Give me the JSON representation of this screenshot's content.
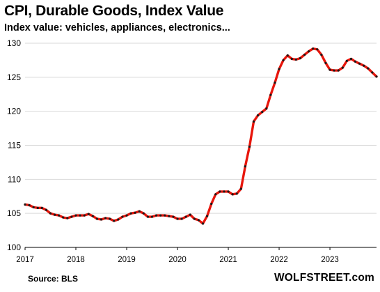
{
  "header": {
    "title": "CPI, Durable Goods,  Index Value",
    "subtitle": "Index value: vehicles, appliances, electronics..."
  },
  "footer": {
    "source": "Source: BLS",
    "brand": "WOLFSTREET.com"
  },
  "colors": {
    "line": "#e8160c",
    "markers": "#1a1a1a",
    "grid": "#d9d9d9"
  },
  "chart_data": {
    "type": "line",
    "title": "CPI, Durable Goods,  Index Value",
    "subtitle": "Index value: vehicles, appliances, electronics...",
    "xlabel": "",
    "ylabel": "",
    "ylim": [
      100,
      130
    ],
    "yticks": [
      100,
      105,
      110,
      115,
      120,
      125,
      130
    ],
    "xlim": [
      2017.0,
      2023.917
    ],
    "xticks": [
      "2017",
      "2018",
      "2019",
      "2020",
      "2021",
      "2022",
      "2023"
    ],
    "grid": true,
    "legend": "none",
    "series": [
      {
        "values": [
          [
            2017.0,
            106.3
          ],
          [
            2017.083,
            106.2
          ],
          [
            2017.167,
            105.9
          ],
          [
            2017.25,
            105.8
          ],
          [
            2017.333,
            105.8
          ],
          [
            2017.417,
            105.5
          ],
          [
            2017.5,
            105.0
          ],
          [
            2017.583,
            104.8
          ],
          [
            2017.667,
            104.7
          ],
          [
            2017.75,
            104.4
          ],
          [
            2017.833,
            104.3
          ],
          [
            2017.917,
            104.5
          ],
          [
            2018.0,
            104.7
          ],
          [
            2018.083,
            104.7
          ],
          [
            2018.167,
            104.7
          ],
          [
            2018.25,
            104.9
          ],
          [
            2018.333,
            104.6
          ],
          [
            2018.417,
            104.2
          ],
          [
            2018.5,
            104.1
          ],
          [
            2018.583,
            104.3
          ],
          [
            2018.667,
            104.2
          ],
          [
            2018.75,
            103.9
          ],
          [
            2018.833,
            104.1
          ],
          [
            2018.917,
            104.5
          ],
          [
            2019.0,
            104.7
          ],
          [
            2019.083,
            105.0
          ],
          [
            2019.167,
            105.1
          ],
          [
            2019.25,
            105.3
          ],
          [
            2019.333,
            105.0
          ],
          [
            2019.417,
            104.5
          ],
          [
            2019.5,
            104.5
          ],
          [
            2019.583,
            104.7
          ],
          [
            2019.667,
            104.7
          ],
          [
            2019.75,
            104.7
          ],
          [
            2019.833,
            104.6
          ],
          [
            2019.917,
            104.5
          ],
          [
            2020.0,
            104.2
          ],
          [
            2020.083,
            104.2
          ],
          [
            2020.167,
            104.5
          ],
          [
            2020.25,
            104.8
          ],
          [
            2020.333,
            104.2
          ],
          [
            2020.417,
            104.0
          ],
          [
            2020.5,
            103.5
          ],
          [
            2020.583,
            104.6
          ],
          [
            2020.667,
            106.4
          ],
          [
            2020.75,
            107.8
          ],
          [
            2020.833,
            108.2
          ],
          [
            2020.917,
            108.2
          ],
          [
            2021.0,
            108.2
          ],
          [
            2021.083,
            107.8
          ],
          [
            2021.167,
            107.9
          ],
          [
            2021.25,
            108.6
          ],
          [
            2021.333,
            111.9
          ],
          [
            2021.417,
            114.8
          ],
          [
            2021.5,
            118.5
          ],
          [
            2021.583,
            119.4
          ],
          [
            2021.667,
            119.9
          ],
          [
            2021.75,
            120.4
          ],
          [
            2021.833,
            122.4
          ],
          [
            2021.917,
            124.2
          ],
          [
            2022.0,
            126.2
          ],
          [
            2022.083,
            127.5
          ],
          [
            2022.167,
            128.2
          ],
          [
            2022.25,
            127.7
          ],
          [
            2022.333,
            127.6
          ],
          [
            2022.417,
            127.8
          ],
          [
            2022.5,
            128.3
          ],
          [
            2022.583,
            128.8
          ],
          [
            2022.667,
            129.2
          ],
          [
            2022.75,
            129.1
          ],
          [
            2022.833,
            128.3
          ],
          [
            2022.917,
            127.1
          ],
          [
            2023.0,
            126.1
          ],
          [
            2023.083,
            126.0
          ],
          [
            2023.167,
            126.0
          ],
          [
            2023.25,
            126.4
          ],
          [
            2023.333,
            127.4
          ],
          [
            2023.417,
            127.7
          ],
          [
            2023.5,
            127.3
          ],
          [
            2023.583,
            127.0
          ],
          [
            2023.667,
            126.7
          ],
          [
            2023.75,
            126.3
          ],
          [
            2023.833,
            125.7
          ],
          [
            2023.917,
            125.1
          ]
        ]
      }
    ]
  }
}
